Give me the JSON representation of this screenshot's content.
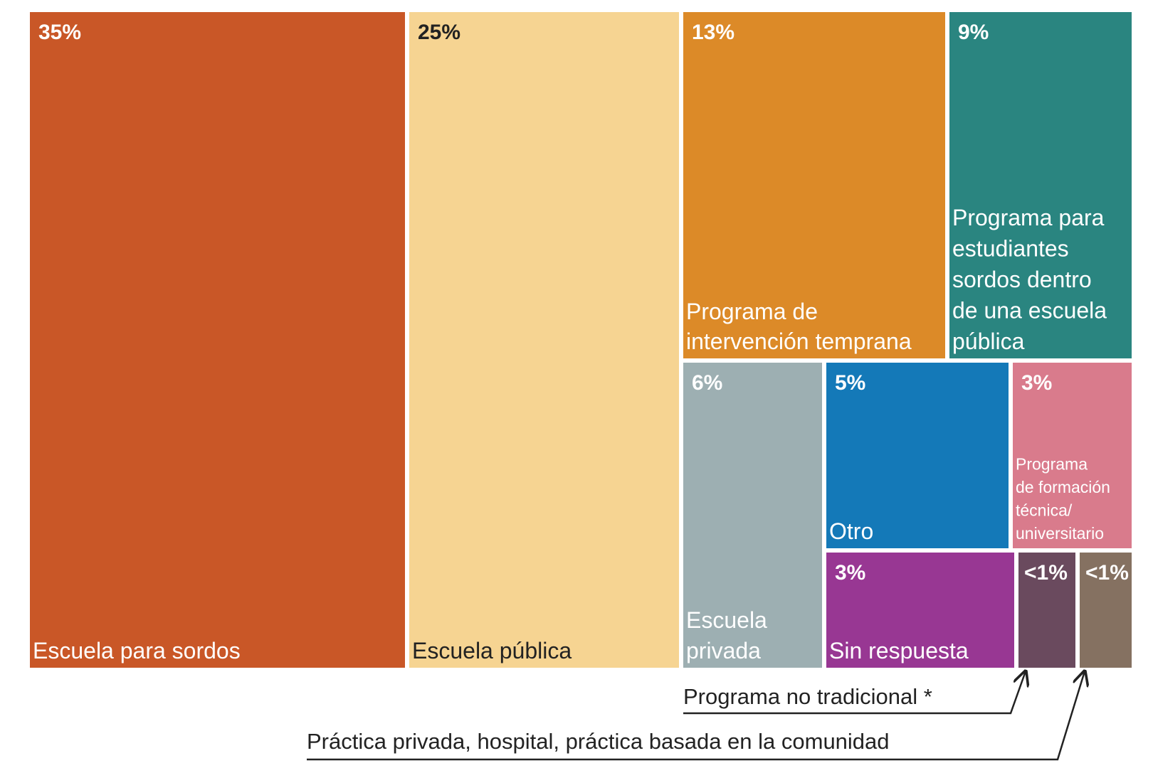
{
  "chart_data": {
    "type": "treemap",
    "title": "",
    "items": [
      {
        "id": "escuela-para-sordos",
        "label": "Escuela para sordos",
        "label_lines": [
          "Escuela para sordos"
        ],
        "value_label": "35%",
        "value": 35,
        "color": "#C95727",
        "text_color": "#ffffff"
      },
      {
        "id": "escuela-publica",
        "label": "Escuela pública",
        "label_lines": [
          "Escuela pública"
        ],
        "value_label": "25%",
        "value": 25,
        "color": "#F6D492",
        "text_color": "#222222"
      },
      {
        "id": "programa-intervencion-temprana",
        "label": "Programa de intervención temprana",
        "label_lines": [
          "Programa de",
          "intervención temprana"
        ],
        "value_label": "13%",
        "value": 13,
        "color": "#DC8A28",
        "text_color": "#ffffff"
      },
      {
        "id": "programa-estudiantes-sordos",
        "label": "Programa para estudiantes sordos dentro de una escuela pública",
        "label_lines": [
          "Programa para",
          "estudiantes",
          "sordos dentro",
          "de una escuela",
          "pública"
        ],
        "value_label": "9%",
        "value": 9,
        "color": "#2A8580",
        "text_color": "#ffffff"
      },
      {
        "id": "escuela-privada",
        "label": "Escuela privada",
        "label_lines": [
          "Escuela",
          "privada"
        ],
        "value_label": "6%",
        "value": 6,
        "color": "#9DAFB2",
        "text_color": "#ffffff"
      },
      {
        "id": "otro",
        "label": "Otro",
        "label_lines": [
          "Otro"
        ],
        "value_label": "5%",
        "value": 5,
        "color": "#1479B8",
        "text_color": "#ffffff"
      },
      {
        "id": "programa-formacion-tecnica",
        "label": "Programa de formación técnica/universitario",
        "label_lines": [
          "Programa",
          "de formación",
          "técnica/",
          "universitario"
        ],
        "value_label": "3%",
        "value": 3,
        "color": "#D97B8C",
        "text_color": "#ffffff"
      },
      {
        "id": "sin-respuesta",
        "label": "Sin respuesta",
        "label_lines": [
          "Sin respuesta"
        ],
        "value_label": "3%",
        "value": 3,
        "color": "#983793",
        "text_color": "#ffffff"
      },
      {
        "id": "programa-no-tradicional",
        "label": "Programa no tradicional *",
        "label_lines": [],
        "value_label": "<1%",
        "value": 0.5,
        "color": "#6A4A5E",
        "text_color": "#ffffff"
      },
      {
        "id": "practica-privada",
        "label": "Práctica privada, hospital, práctica basada en la comunidad",
        "label_lines": [],
        "value_label": "<1%",
        "value": 0.5,
        "color": "#857161",
        "text_color": "#ffffff"
      }
    ],
    "callouts": [
      {
        "target": "programa-no-tradicional",
        "text": "Programa no tradicional *"
      },
      {
        "target": "practica-privada",
        "text": "Práctica privada, hospital, práctica basada en la comunidad"
      }
    ]
  }
}
